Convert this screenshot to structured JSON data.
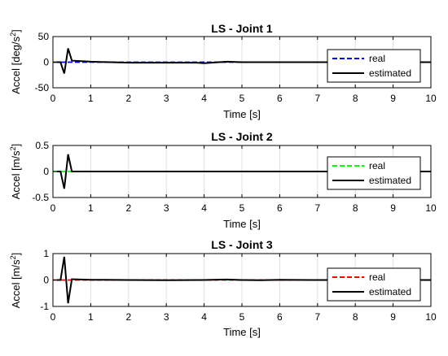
{
  "chart_data": [
    {
      "type": "line",
      "title": "LS - Joint 1",
      "xlabel": "Time [s]",
      "ylabel": {
        "prefix": "Accel [deg/s",
        "sup": "2",
        "suffix": "]"
      },
      "xlim": [
        0,
        10
      ],
      "ylim": [
        -50,
        50
      ],
      "xticks": [
        "0",
        "1",
        "2",
        "3",
        "4",
        "5",
        "6",
        "7",
        "8",
        "9",
        "10"
      ],
      "yticks": [
        {
          "v": -50,
          "label": "-50"
        },
        {
          "v": 0,
          "label": "0"
        },
        {
          "v": 50,
          "label": "50"
        }
      ],
      "grid": "x",
      "legend": "right",
      "series": [
        {
          "name": "real",
          "color": "#0000ff",
          "dash": true,
          "x": [
            0,
            0.1,
            0.2,
            0.3,
            0.4,
            10
          ],
          "y": [
            0,
            0,
            0,
            0,
            0,
            0
          ]
        },
        {
          "name": "estimated",
          "color": "#000000",
          "dash": false,
          "x": [
            0.1,
            0.2,
            0.3,
            0.4,
            0.5,
            1,
            1.5,
            2,
            3,
            3.8,
            4,
            4.2,
            4.6,
            5,
            6,
            7,
            8,
            10
          ],
          "y": [
            0,
            0,
            -22,
            27,
            3,
            1,
            0,
            -1,
            -1,
            -1,
            -2,
            -1,
            1,
            0,
            0,
            0,
            0,
            0
          ]
        }
      ]
    },
    {
      "type": "line",
      "title": "LS - Joint 2",
      "xlabel": "Time [s]",
      "ylabel": {
        "prefix": "Accel [m/s",
        "sup": "2",
        "suffix": "]"
      },
      "xlim": [
        0,
        10
      ],
      "ylim": [
        -0.5,
        0.5
      ],
      "xticks": [
        "0",
        "1",
        "2",
        "3",
        "4",
        "5",
        "6",
        "7",
        "8",
        "9",
        "10"
      ],
      "yticks": [
        {
          "v": -0.5,
          "label": "-0.5"
        },
        {
          "v": 0,
          "label": "0"
        },
        {
          "v": 0.5,
          "label": "0.5"
        }
      ],
      "grid": "x",
      "legend": "right",
      "series": [
        {
          "name": "real",
          "color": "#00ff00",
          "dash": true,
          "x": [
            0,
            0.1,
            0.2,
            0.3,
            0.4,
            10
          ],
          "y": [
            0,
            0,
            0,
            0,
            0,
            0
          ]
        },
        {
          "name": "estimated",
          "color": "#000000",
          "dash": false,
          "x": [
            0.1,
            0.2,
            0.3,
            0.4,
            0.5,
            10
          ],
          "y": [
            0,
            0,
            -0.33,
            0.33,
            0,
            0
          ]
        }
      ]
    },
    {
      "type": "line",
      "title": "LS - Joint 3",
      "xlabel": "Time [s]",
      "ylabel": {
        "prefix": "Accel [m/s",
        "sup": "2",
        "suffix": "]"
      },
      "xlim": [
        0,
        10
      ],
      "ylim": [
        -1,
        1
      ],
      "xticks": [
        "0",
        "1",
        "2",
        "3",
        "4",
        "5",
        "6",
        "7",
        "8",
        "9",
        "10"
      ],
      "yticks": [
        {
          "v": -1,
          "label": "-1"
        },
        {
          "v": 0,
          "label": "0"
        },
        {
          "v": 1,
          "label": "1"
        }
      ],
      "grid": "x",
      "legend": "right",
      "series": [
        {
          "name": "real",
          "color": "#ff0000",
          "dash": true,
          "x": [
            0,
            0.1,
            0.2,
            0.3,
            0.4,
            10
          ],
          "y": [
            0,
            0,
            0,
            0,
            0,
            0
          ]
        },
        {
          "name": "estimated",
          "color": "#000000",
          "dash": false,
          "x": [
            0.1,
            0.2,
            0.3,
            0.4,
            0.5,
            1,
            2,
            3,
            4,
            4.6,
            5,
            5.5,
            6,
            7,
            8,
            10
          ],
          "y": [
            0,
            0,
            0.88,
            -0.88,
            0.03,
            0.01,
            0,
            -0.01,
            0,
            0.02,
            0,
            -0.01,
            0.01,
            0,
            0,
            0
          ]
        }
      ]
    }
  ]
}
